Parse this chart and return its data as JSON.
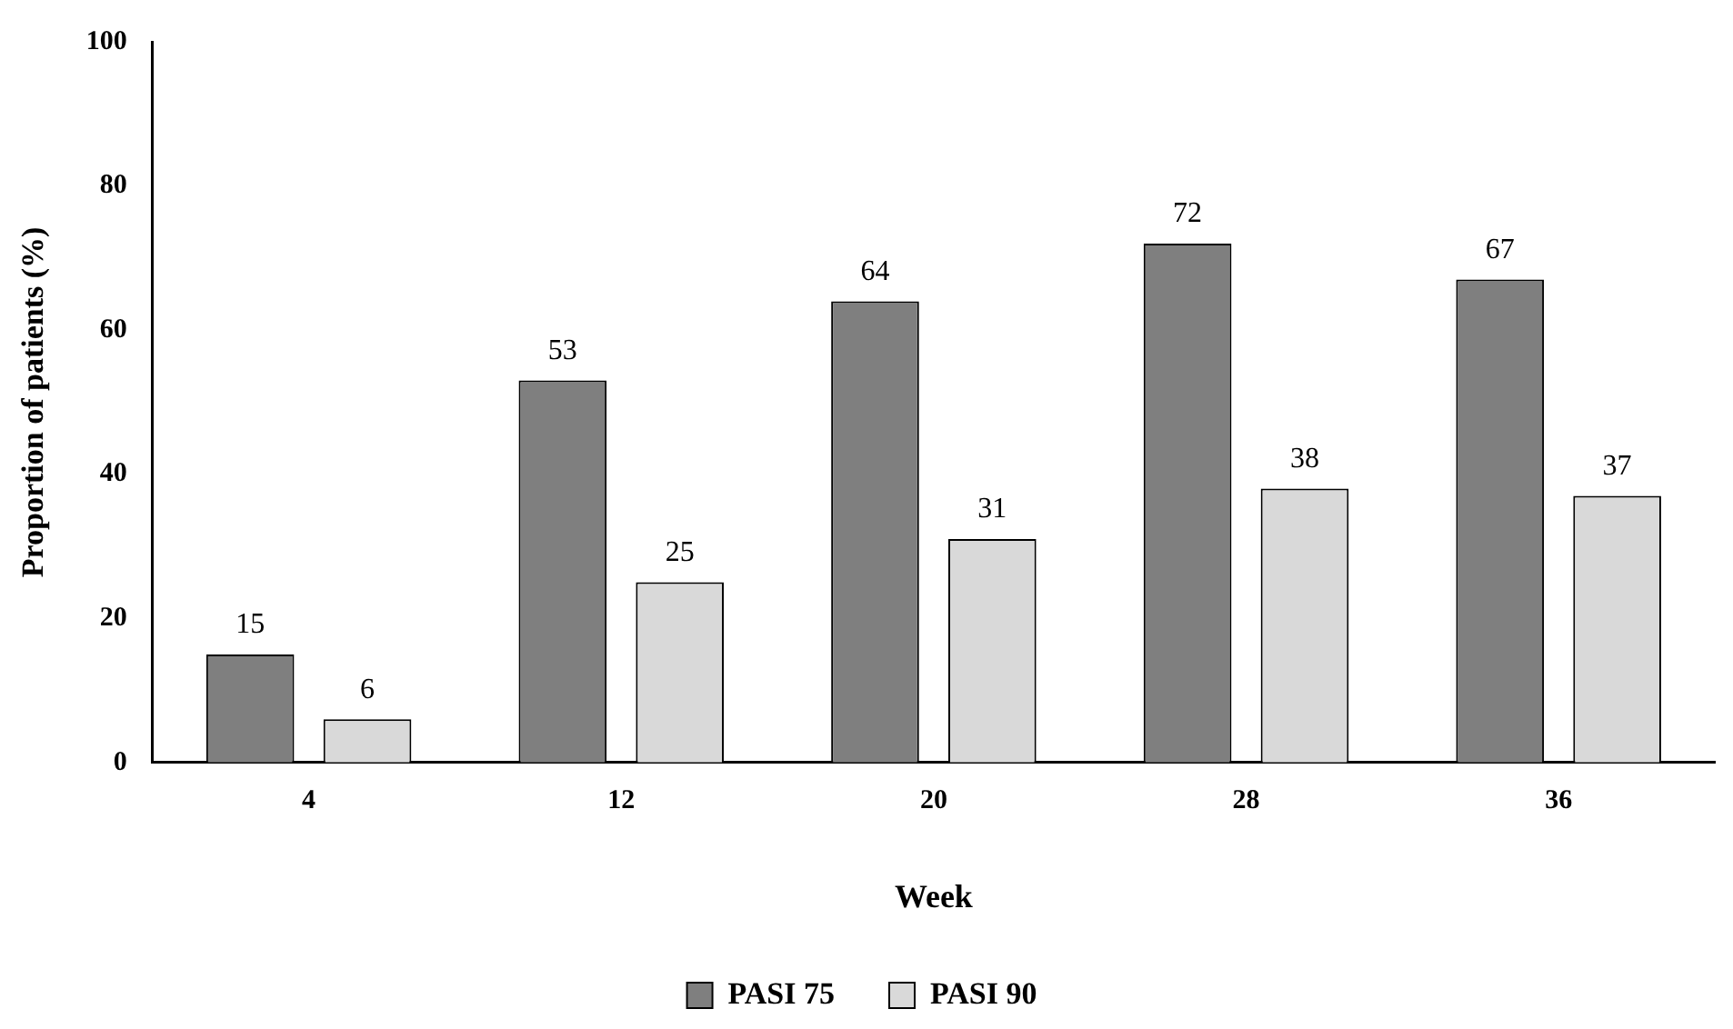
{
  "chart_data": {
    "type": "bar",
    "xlabel": "Week",
    "ylabel": "Proportion of patients (%)",
    "categories": [
      "4",
      "12",
      "20",
      "28",
      "36"
    ],
    "series": [
      {
        "name": "PASI 75",
        "color": "#7f7f7f",
        "values": [
          15,
          53,
          64,
          72,
          67
        ]
      },
      {
        "name": "PASI 90",
        "color": "#d9d9d9",
        "values": [
          6,
          25,
          31,
          38,
          37
        ]
      }
    ],
    "ylim": [
      0,
      100
    ],
    "yticks": [
      0,
      20,
      40,
      60,
      80,
      100
    ],
    "grid": false,
    "legend": "bottom",
    "data_labels": true
  }
}
